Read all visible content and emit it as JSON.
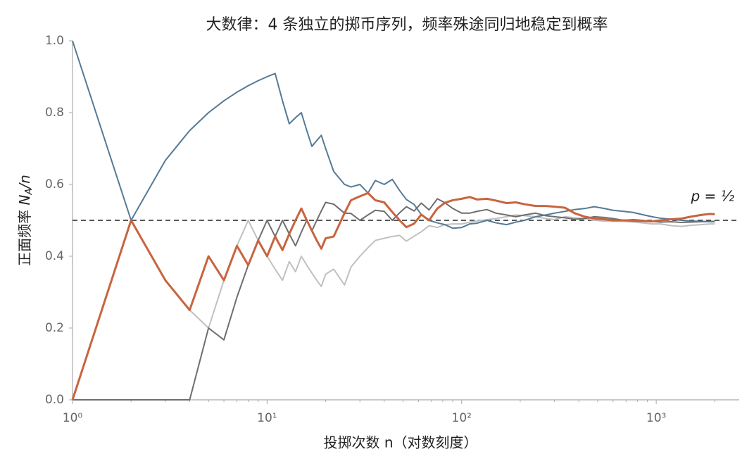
{
  "chart_data": {
    "type": "line",
    "title": "大数律：4 条独立的掷币序列，频率殊途同归地稳定到概率",
    "xlabel": "投掷次数 n（对数刻度）",
    "ylabel": [
      "正面频率 ",
      "N",
      "A",
      "/n"
    ],
    "xscale": "log",
    "xlim": [
      1,
      2670
    ],
    "ylim": [
      0,
      1
    ],
    "xticks": [
      {
        "value": 1,
        "label": "10⁰"
      },
      {
        "value": 10,
        "label": "10¹"
      },
      {
        "value": 100,
        "label": "10²"
      },
      {
        "value": 1000,
        "label": "10³"
      }
    ],
    "xminorticks": [
      2,
      3,
      4,
      5,
      6,
      7,
      8,
      9,
      20,
      30,
      40,
      50,
      60,
      70,
      80,
      90,
      200,
      300,
      400,
      500,
      600,
      700,
      800,
      900,
      2000
    ],
    "yticks": [
      {
        "value": 0,
        "label": "0.0"
      },
      {
        "value": 0.2,
        "label": "0.2"
      },
      {
        "value": 0.4,
        "label": "0.4"
      },
      {
        "value": 0.6,
        "label": "0.6"
      },
      {
        "value": 0.8,
        "label": "0.8"
      },
      {
        "value": 1,
        "label": "1.0"
      }
    ],
    "hline": {
      "value": 0.5,
      "label": "p = ½",
      "color": "#222"
    },
    "x": [
      1,
      2,
      3,
      4,
      5,
      6,
      7,
      8,
      9,
      10,
      11,
      12,
      13,
      14,
      15,
      16,
      17,
      18,
      19,
      20,
      22,
      25,
      27,
      30,
      33,
      36,
      40,
      44,
      48,
      52,
      57,
      62,
      68,
      75,
      82,
      90,
      100,
      110,
      120,
      135,
      150,
      170,
      190,
      210,
      240,
      270,
      300,
      340,
      380,
      430,
      480,
      540,
      600,
      680,
      760,
      850,
      950,
      1050,
      1200,
      1350,
      1500,
      1700,
      1900,
      2000
    ],
    "series": [
      {
        "color": "#c0c0c0",
        "values": [
          0,
          0.5,
          0.333,
          0.25,
          0.2,
          0.333,
          0.429,
          0.5,
          0.444,
          0.4,
          0.364,
          0.333,
          0.385,
          0.357,
          0.4,
          0.375,
          0.353,
          0.333,
          0.316,
          0.35,
          0.364,
          0.32,
          0.37,
          0.4,
          0.424,
          0.444,
          0.45,
          0.455,
          0.458,
          0.442,
          0.456,
          0.468,
          0.485,
          0.48,
          0.488,
          0.49,
          0.49,
          0.495,
          0.498,
          0.502,
          0.505,
          0.51,
          0.515,
          0.513,
          0.51,
          0.505,
          0.502,
          0.51,
          0.507,
          0.505,
          0.5,
          0.498,
          0.497,
          0.497,
          0.495,
          0.493,
          0.49,
          0.49,
          0.485,
          0.483,
          0.486,
          0.488,
          0.49,
          0.49
        ]
      },
      {
        "color": "#6e6e6e",
        "values": [
          0,
          0,
          0,
          0,
          0.2,
          0.167,
          0.286,
          0.375,
          0.444,
          0.5,
          0.455,
          0.5,
          0.462,
          0.429,
          0.467,
          0.5,
          0.471,
          0.5,
          0.526,
          0.55,
          0.545,
          0.52,
          0.519,
          0.5,
          0.515,
          0.528,
          0.525,
          0.5,
          0.521,
          0.538,
          0.526,
          0.548,
          0.529,
          0.56,
          0.549,
          0.533,
          0.52,
          0.52,
          0.525,
          0.53,
          0.52,
          0.515,
          0.51,
          0.515,
          0.52,
          0.513,
          0.51,
          0.507,
          0.503,
          0.505,
          0.51,
          0.508,
          0.505,
          0.5,
          0.502,
          0.5,
          0.497,
          0.495,
          0.496,
          0.494,
          0.495,
          0.496,
          0.497,
          0.497
        ]
      },
      {
        "color": "#547a96",
        "values": [
          1,
          0.5,
          0.667,
          0.75,
          0.8,
          0.833,
          0.857,
          0.875,
          0.889,
          0.9,
          0.909,
          0.833,
          0.769,
          0.786,
          0.8,
          0.75,
          0.706,
          0.722,
          0.737,
          0.7,
          0.636,
          0.6,
          0.593,
          0.6,
          0.576,
          0.611,
          0.6,
          0.614,
          0.583,
          0.558,
          0.544,
          0.516,
          0.5,
          0.493,
          0.488,
          0.478,
          0.48,
          0.49,
          0.492,
          0.5,
          0.493,
          0.488,
          0.495,
          0.5,
          0.51,
          0.515,
          0.52,
          0.525,
          0.53,
          0.533,
          0.538,
          0.533,
          0.528,
          0.525,
          0.522,
          0.516,
          0.51,
          0.506,
          0.503,
          0.5,
          0.498,
          0.497,
          0.496,
          0.496
        ]
      },
      {
        "color": "#c8643f",
        "values": [
          0,
          0.5,
          0.333,
          0.25,
          0.4,
          0.333,
          0.429,
          0.375,
          0.444,
          0.4,
          0.455,
          0.417,
          0.462,
          0.5,
          0.533,
          0.5,
          0.471,
          0.444,
          0.421,
          0.45,
          0.455,
          0.52,
          0.556,
          0.567,
          0.576,
          0.556,
          0.55,
          0.523,
          0.5,
          0.481,
          0.491,
          0.516,
          0.5,
          0.533,
          0.549,
          0.556,
          0.56,
          0.565,
          0.558,
          0.56,
          0.555,
          0.548,
          0.55,
          0.545,
          0.54,
          0.54,
          0.538,
          0.535,
          0.52,
          0.51,
          0.505,
          0.503,
          0.5,
          0.5,
          0.499,
          0.498,
          0.497,
          0.5,
          0.503,
          0.505,
          0.51,
          0.515,
          0.518,
          0.517
        ]
      }
    ]
  }
}
